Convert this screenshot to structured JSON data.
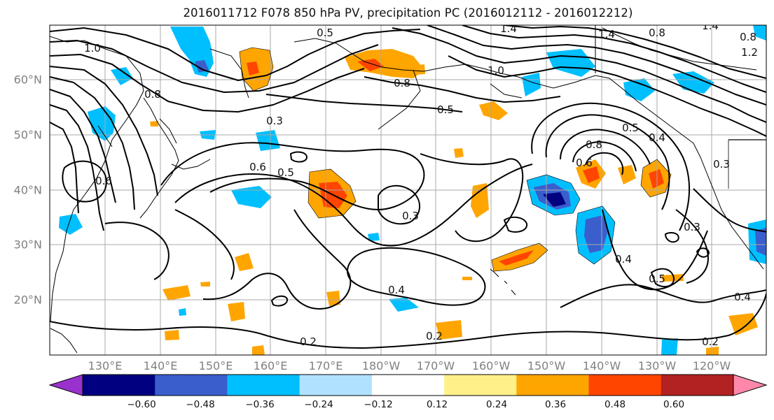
{
  "title": "2016011712 F078 850 hPa PV, precipitation PC (2016012112 - 2016012212)",
  "map": {
    "lat_labels": [
      {
        "text": "60°N",
        "lat": 60
      },
      {
        "text": "50°N",
        "lat": 50
      },
      {
        "text": "40°N",
        "lat": 40
      },
      {
        "text": "30°N",
        "lat": 30
      },
      {
        "text": "20°N",
        "lat": 20
      }
    ],
    "lon_labels": [
      {
        "text": "130°E",
        "lon": 130
      },
      {
        "text": "140°E",
        "lon": 140
      },
      {
        "text": "150°E",
        "lon": 150
      },
      {
        "text": "160°E",
        "lon": 160
      },
      {
        "text": "170°E",
        "lon": 170
      },
      {
        "text": "180°W",
        "lon": 180
      },
      {
        "text": "170°W",
        "lon": 190
      },
      {
        "text": "160°W",
        "lon": 200
      },
      {
        "text": "150°W",
        "lon": 210
      },
      {
        "text": "140°W",
        "lon": 220
      },
      {
        "text": "130°W",
        "lon": 230
      },
      {
        "text": "120°W",
        "lon": 240
      }
    ],
    "contour_labels": [
      "1.0",
      "0.5",
      "1.4",
      "0.8",
      "1.2",
      "1.4",
      "0.8",
      "1.0",
      "0.8",
      "0.5",
      "0.6",
      "0.5",
      "0.4",
      "0.3",
      "0.6",
      "0.5",
      "0.3",
      "0.8",
      "0.6",
      "0.3",
      "0.4",
      "0.4",
      "0.2",
      "0.2",
      "0.4",
      "0.2",
      "0.5",
      "0.3",
      "1.4",
      "0.8"
    ],
    "colors": {
      "neg_060": "#9932cc",
      "neg_048": "#000080",
      "neg_036": "#3a5fcd",
      "neg_024": "#00bfff",
      "neg_012": "#b0e2ff",
      "pos_012": "#fff08a",
      "pos_024": "#ffa500",
      "pos_036": "#ff4500",
      "pos_048": "#b22222",
      "pos_060": "#ff88aa"
    }
  },
  "colorbar": {
    "ticks": [
      "−0.60",
      "−0.48",
      "−0.36",
      "−0.24",
      "−0.12",
      "0.12",
      "0.24",
      "0.36",
      "0.48",
      "0.60"
    ],
    "colors": [
      "#9932cc",
      "#000080",
      "#3a5fcd",
      "#00bfff",
      "#b0e2ff",
      "#ffffff",
      "#fff08a",
      "#ffa500",
      "#ff4500",
      "#b22222",
      "#ff88aa"
    ]
  }
}
